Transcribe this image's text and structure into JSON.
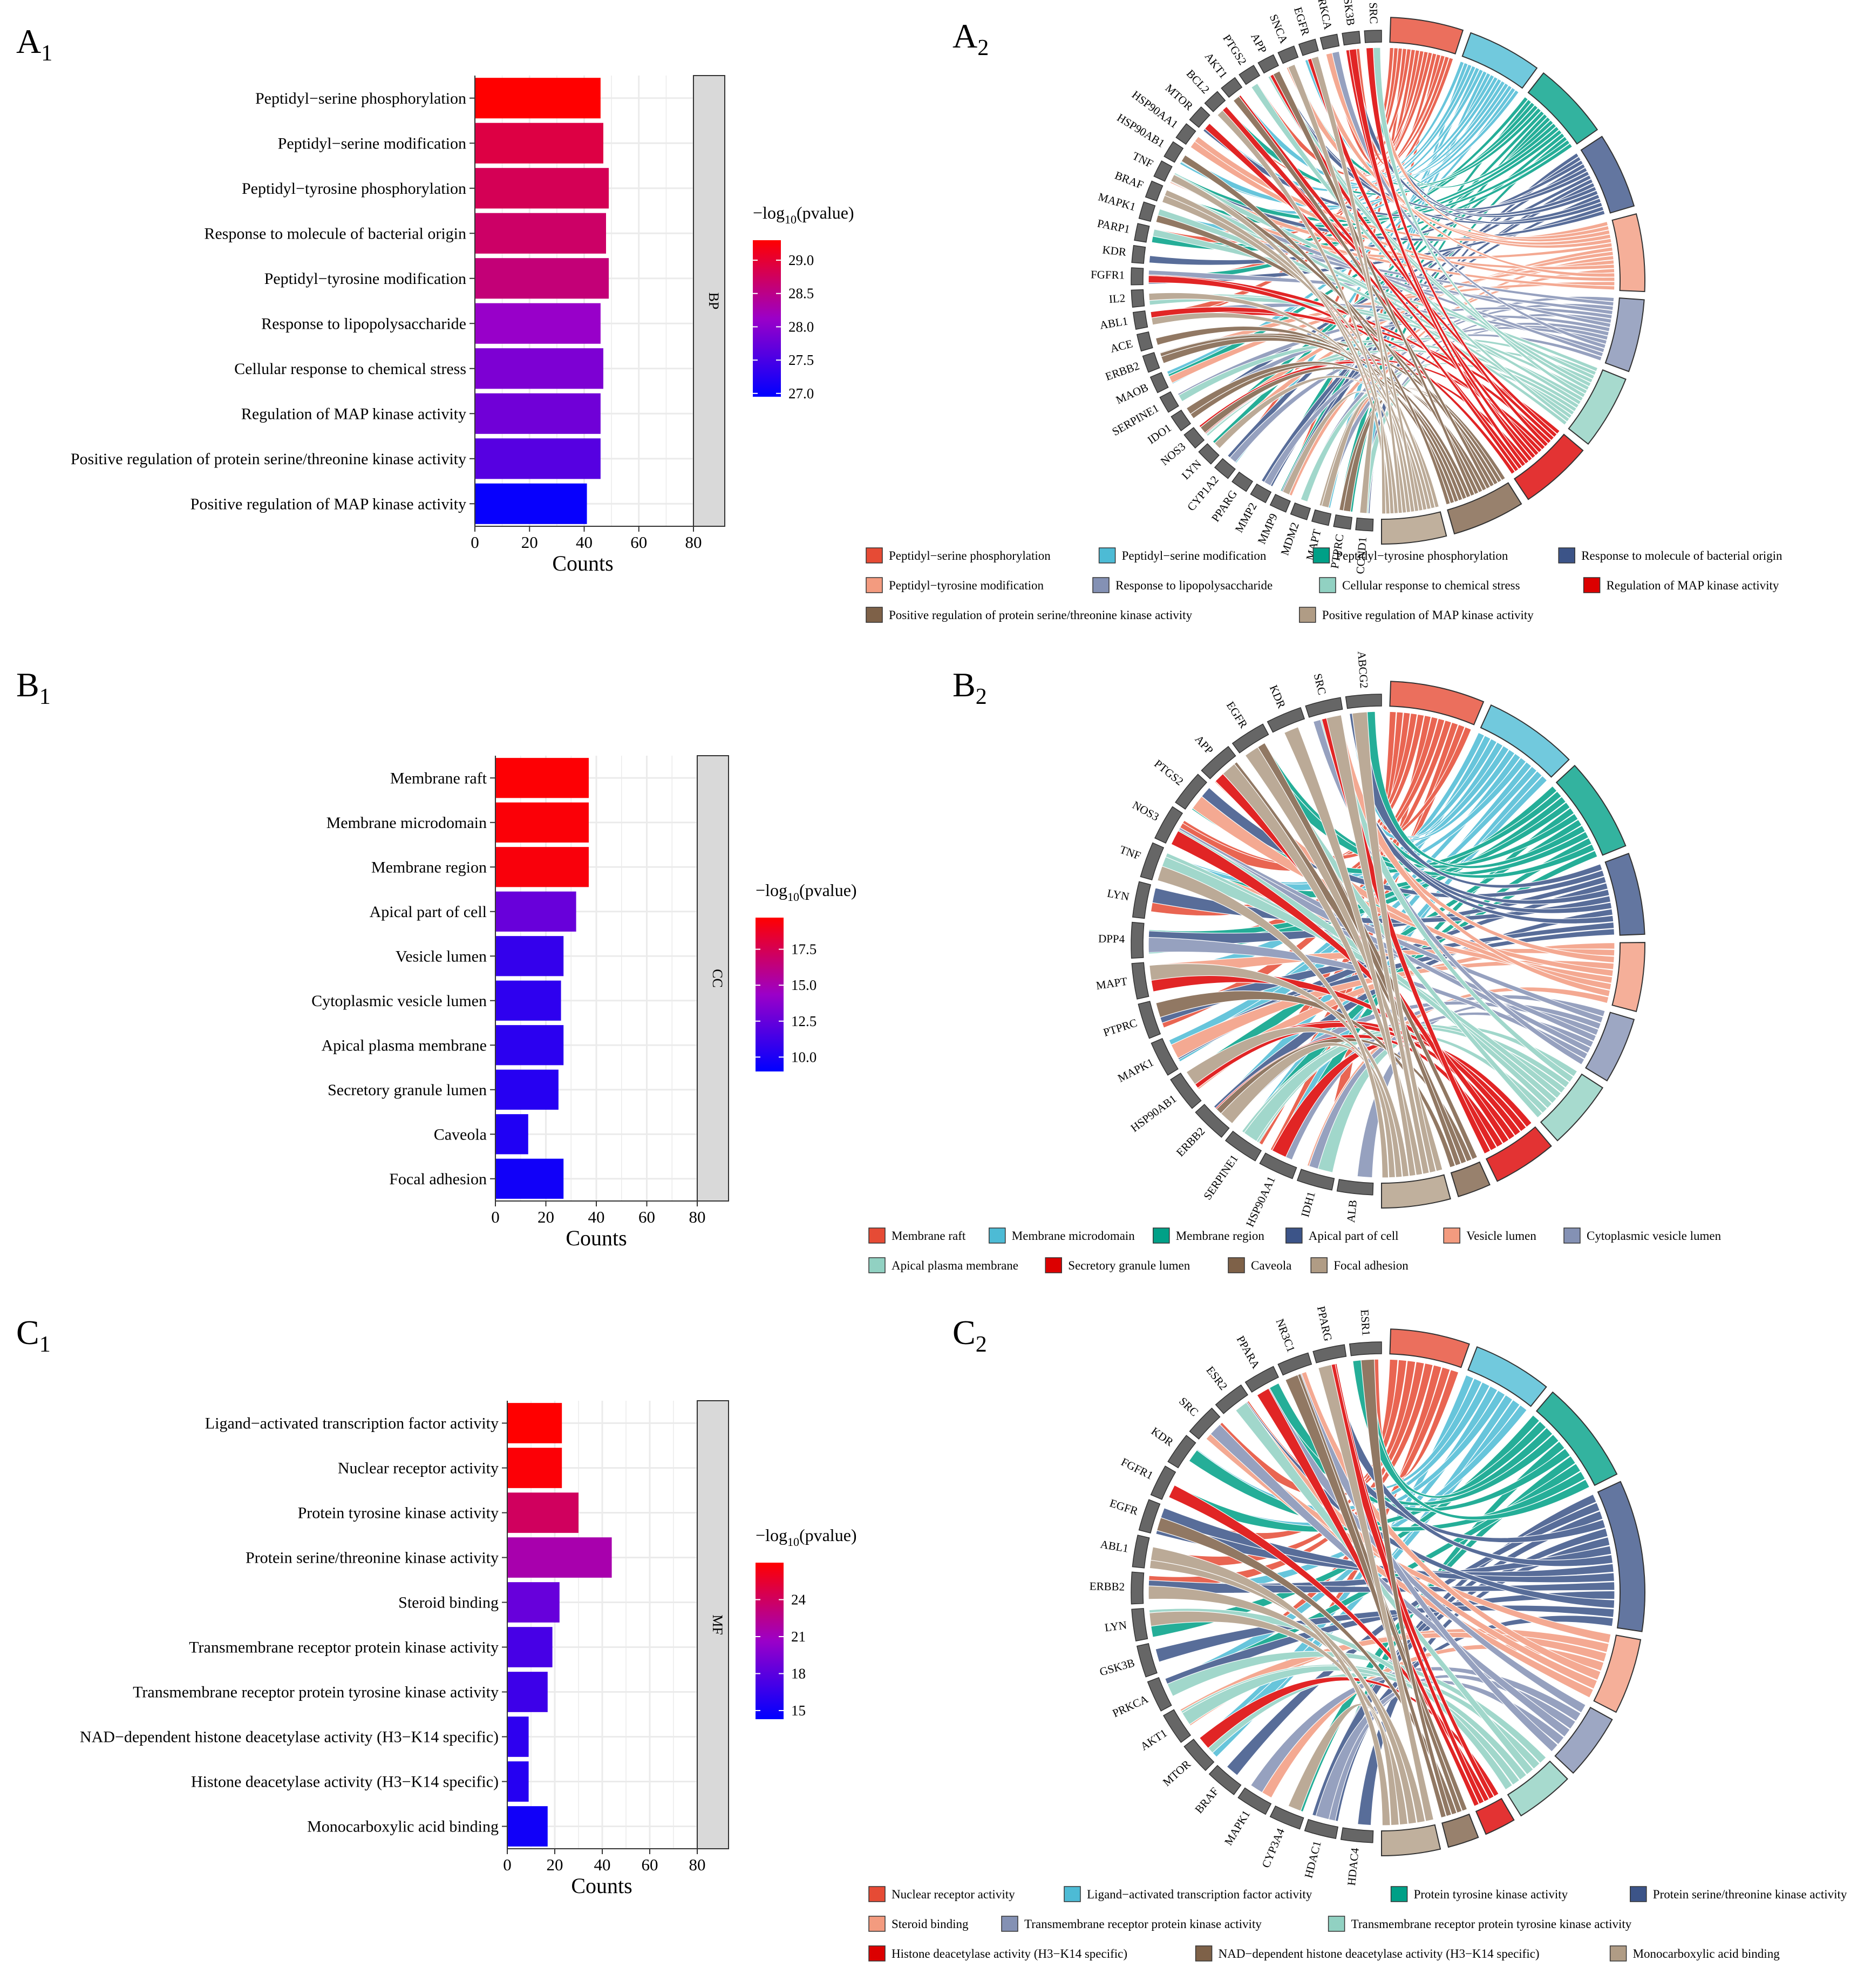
{
  "panels": {
    "A1": {
      "letter": "A",
      "sub": "1"
    },
    "A2": {
      "letter": "A",
      "sub": "2"
    },
    "B1": {
      "letter": "B",
      "sub": "1"
    },
    "B2": {
      "letter": "B",
      "sub": "2"
    },
    "C1": {
      "letter": "C",
      "sub": "1"
    },
    "C2": {
      "letter": "C",
      "sub": "2"
    }
  },
  "colors": {
    "bar_low": "#0000ff",
    "bar_high": "#ff0000",
    "grid": "#ebebeb",
    "strip_fill": "#d9d9d9",
    "strip_border": "#333333",
    "chord_palette": [
      "#e64b35",
      "#4dbbd5",
      "#00a087",
      "#3c5488",
      "#f39b7f",
      "#8491b4",
      "#91d1c2",
      "#dc0000",
      "#7e6148",
      "#b09c85"
    ]
  },
  "chart_data": [
    {
      "id": "A1",
      "type": "bar",
      "orientation": "horizontal",
      "facet": "BP",
      "categories": [
        "Peptidyl−serine phosphorylation",
        "Peptidyl−serine modification",
        "Peptidyl−tyrosine phosphorylation",
        "Response to molecule of bacterial origin",
        "Peptidyl−tyrosine modification",
        "Response to lipopolysaccharide",
        "Cellular response to chemical stress",
        "Regulation of MAP kinase activity",
        "Positive regulation of protein serine/threonine kinase activity",
        "Positive regulation of MAP kinase activity"
      ],
      "values": [
        46,
        47,
        49,
        48,
        49,
        46,
        47,
        46,
        46,
        41
      ],
      "color_values": [
        29.3,
        28.9,
        28.8,
        28.7,
        28.6,
        28.1,
        27.9,
        27.8,
        27.6,
        27.0
      ],
      "xlabel": "Counts",
      "xlim": [
        0,
        80
      ],
      "xticks": [
        "0",
        "20",
        "40",
        "60",
        "80"
      ],
      "legend": {
        "title_prefix": "−log",
        "title_sub": "10",
        "title_suffix": "(pvalue)",
        "ticks": [
          "29.0",
          "28.5",
          "28.0",
          "27.5",
          "27.0"
        ],
        "tick_values": [
          29.0,
          28.5,
          28.0,
          27.5,
          27.0
        ],
        "range": [
          26.95,
          29.3
        ]
      }
    },
    {
      "id": "B1",
      "type": "bar",
      "orientation": "horizontal",
      "facet": "CC",
      "categories": [
        "Membrane raft",
        "Membrane microdomain",
        "Membrane region",
        "Apical part of cell",
        "Vesicle lumen",
        "Cytoplasmic vesicle lumen",
        "Apical plasma membrane",
        "Secretory granule lumen",
        "Caveola",
        "Focal adhesion"
      ],
      "values": [
        37,
        37,
        37,
        32,
        27,
        26,
        27,
        25,
        13,
        27
      ],
      "color_values": [
        19.6,
        19.5,
        19.4,
        12.6,
        10.8,
        10.6,
        10.5,
        10.3,
        10.1,
        9.6
      ],
      "xlabel": "Counts",
      "xlim": [
        0,
        80
      ],
      "xticks": [
        "0",
        "20",
        "40",
        "60",
        "80"
      ],
      "legend": {
        "title_prefix": "−log",
        "title_sub": "10",
        "title_suffix": "(pvalue)",
        "ticks": [
          "17.5",
          "15.0",
          "12.5",
          "10.0"
        ],
        "tick_values": [
          17.5,
          15.0,
          12.5,
          10.0
        ],
        "range": [
          9.0,
          19.7
        ]
      }
    },
    {
      "id": "C1",
      "type": "bar",
      "orientation": "horizontal",
      "facet": "MF",
      "categories": [
        "Ligand−activated transcription factor activity",
        "Nuclear receptor activity",
        "Protein tyrosine kinase activity",
        "Protein serine/threonine kinase activity",
        "Steroid binding",
        "Transmembrane receptor protein kinase activity",
        "Transmembrane receptor protein tyrosine kinase activity",
        "NAD−dependent histone deacetylase activity (H3−K14 specific)",
        "Histone deacetylase activity (H3−K14 specific)",
        "Monocarboxylic acid binding"
      ],
      "values": [
        23,
        23,
        30,
        44,
        22,
        19,
        17,
        9,
        9,
        17
      ],
      "color_values": [
        27.0,
        26.8,
        24.0,
        21.5,
        18.5,
        17.2,
        16.8,
        16.2,
        15.8,
        15.0
      ],
      "xlabel": "Counts",
      "xlim": [
        0,
        80
      ],
      "xticks": [
        "0",
        "20",
        "40",
        "60",
        "80"
      ],
      "legend": {
        "title_prefix": "−log",
        "title_sub": "10",
        "title_suffix": "(pvalue)",
        "ticks": [
          "24",
          "21",
          "18",
          "15"
        ],
        "tick_values": [
          24,
          21,
          18,
          15
        ],
        "range": [
          14.3,
          27.0
        ]
      }
    },
    {
      "id": "A2",
      "type": "chord",
      "genes": [
        "SRC",
        "GSK3B",
        "PRKCA",
        "EGFR",
        "SNCA",
        "APP",
        "PTGS2",
        "AKT1",
        "BCL2",
        "MTOR",
        "HSP90AA1",
        "HSP90AB1",
        "TNF",
        "BRAF",
        "MAPK1",
        "PARP1",
        "KDR",
        "FGFR1",
        "IL2",
        "ABL1",
        "ACE",
        "ERBB2",
        "MAOB",
        "SERPINE1",
        "IDO1",
        "NOS3",
        "LYN",
        "CYP1A2",
        "PPARG",
        "MMP2",
        "MMP9",
        "MDM2",
        "MAPT",
        "PTPRC",
        "CCND1"
      ],
      "terms": [
        "Peptidyl−serine phosphorylation",
        "Peptidyl−serine modification",
        "Peptidyl−tyrosine phosphorylation",
        "Response to molecule of bacterial origin",
        "Peptidyl−tyrosine modification",
        "Response to lipopolysaccharide",
        "Cellular response to chemical stress",
        "Regulation of MAP kinase activity",
        "Positive regulation of protein serine/threonine kinase activity",
        "Positive regulation of MAP kinase activity"
      ],
      "term_weights": [
        46,
        47,
        49,
        48,
        49,
        46,
        47,
        46,
        46,
        41
      ]
    },
    {
      "id": "B2",
      "type": "chord",
      "genes": [
        "ABCG2",
        "SRC",
        "KDR",
        "EGFR",
        "APP",
        "PTGS2",
        "NOS3",
        "TNF",
        "LYN",
        "DPP4",
        "MAPT",
        "PTPRC",
        "MAPK1",
        "HSP90AB1",
        "ERBB2",
        "SERPINE1",
        "HSP90AA1",
        "IDH1",
        "ALB"
      ],
      "terms": [
        "Membrane raft",
        "Membrane microdomain",
        "Membrane region",
        "Apical part of cell",
        "Vesicle lumen",
        "Cytoplasmic vesicle lumen",
        "Apical plasma membrane",
        "Secretory granule lumen",
        "Caveola",
        "Focal adhesion"
      ],
      "term_weights": [
        37,
        37,
        37,
        32,
        27,
        26,
        27,
        25,
        13,
        27
      ]
    },
    {
      "id": "C2",
      "type": "chord",
      "genes": [
        "ESR1",
        "PPARG",
        "NR3C1",
        "PPARA",
        "ESR2",
        "SRC",
        "KDR",
        "FGFR1",
        "EGFR",
        "ABL1",
        "ERBB2",
        "LYN",
        "GSK3B",
        "PRKCA",
        "AKT1",
        "MTOR",
        "BRAF",
        "MAPK1",
        "CYP3A4",
        "HDAC1",
        "HDAC4"
      ],
      "terms": [
        "Nuclear receptor activity",
        "Ligand−activated transcription factor activity",
        "Protein tyrosine kinase activity",
        "Protein serine/threonine kinase activity",
        "Steroid binding",
        "Transmembrane receptor protein kinase activity",
        "Transmembrane receptor protein tyrosine kinase activity",
        "Histone deacetylase activity (H3−K14 specific)",
        "NAD−dependent histone deacetylase activity (H3−K14 specific)",
        "Monocarboxylic acid binding"
      ],
      "term_weights": [
        23,
        23,
        30,
        44,
        22,
        19,
        17,
        9,
        9,
        17
      ]
    }
  ]
}
